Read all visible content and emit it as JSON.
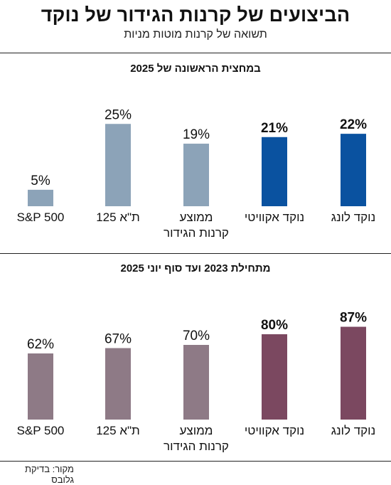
{
  "title": "הביצועים של קרנות הגידור של נוקד",
  "subtitle": "תשואה של קרנות מוטות מניות",
  "source": "מקור: בדיקת גלובס",
  "chart_data": [
    {
      "type": "bar",
      "title": "במחצית הראשונה של 2025",
      "categories": [
        "נוקד לונג",
        "נוקד אקוויטי",
        "ממוצע קרנות הגידור",
        "ת\"א 125",
        "S&P 500"
      ],
      "value_labels": [
        "22%",
        "21%",
        "19%",
        "25%",
        "5%"
      ],
      "values": [
        22,
        21,
        19,
        25,
        5
      ],
      "unit": "%",
      "colors": [
        "#0a52a0",
        "#0a52a0",
        "#8ca3b8",
        "#8ca3b8",
        "#8ca3b8"
      ],
      "bold_labels": [
        true,
        true,
        false,
        false,
        false
      ]
    },
    {
      "type": "bar",
      "title": "מתחילת 2023 ועד סוף יוני 2025",
      "categories": [
        "נוקד לונג",
        "נוקד אקוויטי",
        "ממוצע קרנות הגידור",
        "ת\"א 125",
        "S&P 500"
      ],
      "value_labels": [
        "87%",
        "80%",
        "70%",
        "67%",
        "62%"
      ],
      "values": [
        87,
        80,
        70,
        67,
        62
      ],
      "unit": "%",
      "colors": [
        "#7b4860",
        "#7b4860",
        "#8e7a86",
        "#8e7a86",
        "#8e7a86"
      ],
      "bold_labels": [
        true,
        true,
        false,
        false,
        false
      ]
    }
  ]
}
